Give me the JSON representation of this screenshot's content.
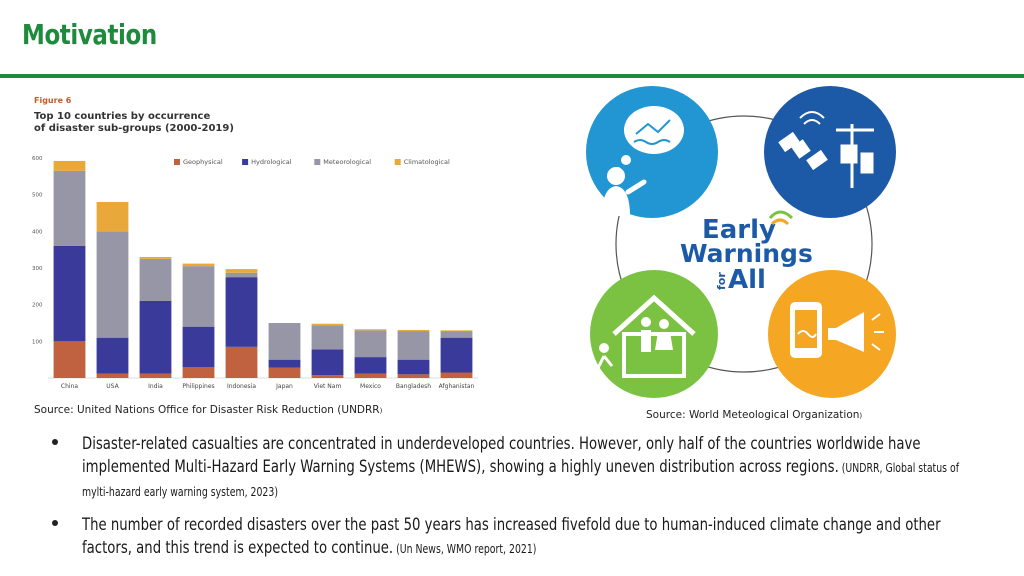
{
  "slide": {
    "title": "Motivation"
  },
  "figure": {
    "label": "Figure 6",
    "title_line1": "Top 10 countries by occurrence",
    "title_line2": "of disaster sub-groups (2000-2019)"
  },
  "chart_data": {
    "type": "bar",
    "stacked": true,
    "title": "Top 10 countries by occurrence of disaster sub-groups (2000-2019)",
    "xlabel": "",
    "ylabel": "",
    "ylim": [
      0,
      600
    ],
    "yticks": [
      0,
      100,
      200,
      300,
      400,
      500,
      600
    ],
    "categories": [
      "China",
      "USA",
      "India",
      "Philippines",
      "Indonesia",
      "Japan",
      "Viet Nam",
      "Mexico",
      "Bangladesh",
      "Afghanistan"
    ],
    "series": [
      {
        "name": "Geophysical",
        "color": "#c0623f",
        "values": [
          100,
          12,
          12,
          30,
          85,
          28,
          8,
          12,
          10,
          15
        ]
      },
      {
        "name": "Hydrological",
        "color": "#3a3a9a",
        "values": [
          260,
          98,
          198,
          110,
          190,
          22,
          70,
          45,
          40,
          95
        ]
      },
      {
        "name": "Meteorological",
        "color": "#9696a6",
        "values": [
          205,
          290,
          115,
          165,
          12,
          100,
          65,
          73,
          78,
          18
        ]
      },
      {
        "name": "Climatological",
        "color": "#e8a93a",
        "values": [
          27,
          80,
          5,
          7,
          10,
          0,
          5,
          3,
          3,
          2
        ]
      }
    ],
    "legend": "top-right",
    "grid": false
  },
  "sources": {
    "left": "Source:  United Nations Office for Disaster Risk Reduction (UNDRR",
    "left_paren": ")",
    "right": "Source: World Meteological Organization",
    "right_paren": ")"
  },
  "early_warnings": {
    "logo_line1": "Early",
    "logo_line2": "Warnings",
    "logo_for": "for",
    "logo_all": "All",
    "colors": {
      "top_left": "#2196d3",
      "top_right": "#1c5aa8",
      "bottom_left": "#7cc242",
      "bottom_right": "#f5a623"
    }
  },
  "bullets": [
    {
      "text": "Disaster-related casualties are concentrated in underdeveloped countries. However, only half of the countries worldwide have implemented Multi-Hazard Early Warning Systems (MHEWS), showing a highly uneven distribution across regions.",
      "cite": " (UNDRR, Global status of mylti-hazard early warning system, 2023)"
    },
    {
      "text": "The number of recorded disasters over the past 50 years has increased fivefold due to human-induced climate change and other factors, and this trend is expected to continue.",
      "cite": " (Un News, WMO report, 2021)"
    }
  ]
}
